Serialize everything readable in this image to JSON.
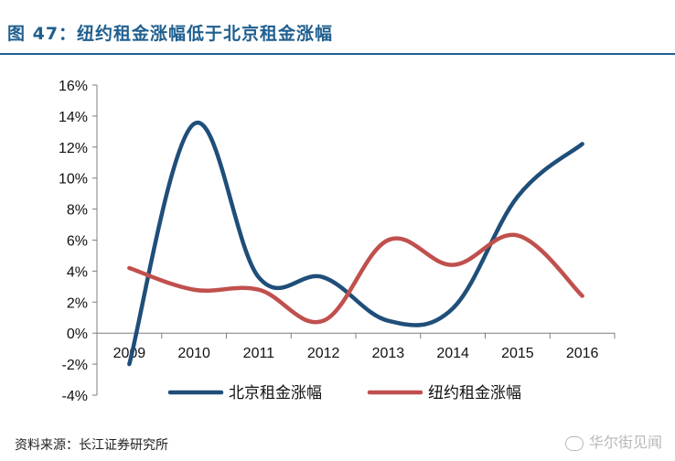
{
  "figure": {
    "title": "图 47：纽约租金涨幅低于北京租金涨幅",
    "source": "资料来源：长江证券研究所",
    "watermark": "华尔街见闻"
  },
  "chart_data": {
    "type": "line",
    "x": [
      "2009",
      "2010",
      "2011",
      "2012",
      "2013",
      "2014",
      "2015",
      "2016"
    ],
    "ylim": [
      -4,
      16
    ],
    "yticks": [
      16,
      14,
      12,
      10,
      8,
      6,
      4,
      2,
      0,
      -2,
      -4
    ],
    "ytick_labels": [
      "16%",
      "14%",
      "12%",
      "10%",
      "8%",
      "6%",
      "4%",
      "2%",
      "0%",
      "-2%",
      "-4%"
    ],
    "smooth": true,
    "grid": false,
    "legend_position": "bottom",
    "series": [
      {
        "name": "北京租金涨幅",
        "color": "#1f4e79",
        "values": [
          -2.0,
          13.5,
          3.6,
          3.6,
          0.8,
          1.6,
          8.8,
          12.2
        ]
      },
      {
        "name": "纽约租金涨幅",
        "color": "#c0504d",
        "values": [
          4.2,
          2.8,
          2.8,
          0.8,
          6.0,
          4.4,
          6.3,
          2.4
        ]
      }
    ]
  }
}
